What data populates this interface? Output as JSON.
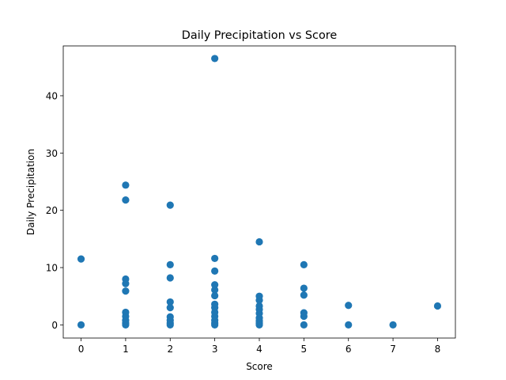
{
  "chart_data": {
    "type": "scatter",
    "title": "Daily Precipitation vs Score",
    "xlabel": "Score",
    "ylabel": "Daily Precipitation",
    "xlim": [
      -0.4,
      8.4
    ],
    "ylim": [
      -2.3,
      48.7
    ],
    "xticks": [
      0,
      1,
      2,
      3,
      4,
      5,
      6,
      7,
      8
    ],
    "yticks": [
      0,
      10,
      20,
      30,
      40
    ],
    "grid": false,
    "legend": "none",
    "marker_color": "#1f77b4",
    "points": [
      [
        0,
        0
      ],
      [
        0,
        11.5
      ],
      [
        1,
        0
      ],
      [
        1,
        0.3
      ],
      [
        1,
        0.8
      ],
      [
        1,
        1.5
      ],
      [
        1,
        2.2
      ],
      [
        1,
        5.9
      ],
      [
        1,
        7.2
      ],
      [
        1,
        8.0
      ],
      [
        1,
        21.8
      ],
      [
        1,
        24.4
      ],
      [
        2,
        0
      ],
      [
        2,
        0.3
      ],
      [
        2,
        0.8
      ],
      [
        2,
        1.4
      ],
      [
        2,
        3.0
      ],
      [
        2,
        4.0
      ],
      [
        2,
        8.2
      ],
      [
        2,
        10.5
      ],
      [
        2,
        20.9
      ],
      [
        3,
        0
      ],
      [
        3,
        0.3
      ],
      [
        3,
        0.8
      ],
      [
        3,
        1.5
      ],
      [
        3,
        2.2
      ],
      [
        3,
        3.0
      ],
      [
        3,
        3.6
      ],
      [
        3,
        5.1
      ],
      [
        3,
        6.1
      ],
      [
        3,
        7.0
      ],
      [
        3,
        9.4
      ],
      [
        3,
        11.6
      ],
      [
        3,
        46.5
      ],
      [
        4,
        0
      ],
      [
        4,
        0.3
      ],
      [
        4,
        0.7
      ],
      [
        4,
        1.2
      ],
      [
        4,
        2.0
      ],
      [
        4,
        2.7
      ],
      [
        4,
        3.3
      ],
      [
        4,
        4.3
      ],
      [
        4,
        5.0
      ],
      [
        4,
        14.5
      ],
      [
        5,
        0
      ],
      [
        5,
        1.5
      ],
      [
        5,
        2.1
      ],
      [
        5,
        5.2
      ],
      [
        5,
        6.4
      ],
      [
        5,
        10.5
      ],
      [
        6,
        0
      ],
      [
        6,
        3.4
      ],
      [
        7,
        0
      ],
      [
        8,
        3.3
      ]
    ]
  }
}
